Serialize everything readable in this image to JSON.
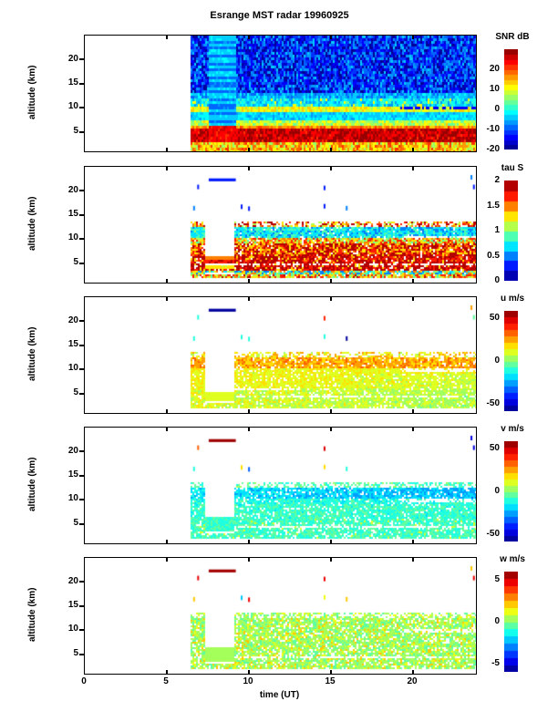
{
  "title": "Esrange MST radar 19960925",
  "axes": {
    "xlabel": "time (UT)",
    "ylabel": "altitude (km)",
    "x_ticks": [
      "0",
      "5",
      "10",
      "15",
      "20"
    ],
    "y_ticks": [
      "20",
      "15",
      "10",
      "5"
    ]
  },
  "chart_data": {
    "type": "heatmap",
    "title": "Esrange MST radar 19960925",
    "xlabel": "time (UT)",
    "ylabel": "altitude (km)",
    "x_range_ut": [
      0,
      23.83
    ],
    "alt_range_km": [
      1,
      25
    ],
    "x_tick_values": [
      0,
      5,
      10,
      15,
      20
    ],
    "y_tick_values": [
      20,
      15,
      10,
      5
    ],
    "colormap": "jet",
    "data_start_ut": 6.4,
    "calibration_gap_ut": [
      7.35,
      9.15
    ],
    "specks": [
      [
        6.85,
        21.3
      ],
      [
        6.6,
        16.9
      ],
      [
        9.5,
        17.2
      ],
      [
        9.95,
        16.8
      ],
      [
        14.55,
        21.1
      ],
      [
        14.55,
        17.3
      ],
      [
        15.9,
        16.9
      ],
      [
        23.5,
        23.3
      ],
      [
        23.65,
        21.3
      ],
      [
        23.85,
        16.9
      ]
    ],
    "panels": [
      {
        "name": "snr",
        "colorbar_label": "SNR dB",
        "cbar_ticks": [
          "20",
          "10",
          "0",
          "-10",
          "-20"
        ],
        "cbar_tick_vals": [
          20,
          10,
          0,
          -10,
          -20
        ],
        "range": [
          -20,
          30
        ],
        "steps": 20,
        "seed": 11,
        "drop": 0,
        "cellH": 3,
        "bands": [
          {
            "a0": 13.2,
            "a1": 25.0,
            "v": -12,
            "n": 8
          },
          {
            "a0": 12.2,
            "a1": 13.2,
            "v": -5,
            "n": 4
          },
          {
            "a0": 10.6,
            "a1": 12.2,
            "v": -2,
            "n": 5,
            "fleckP": 0.07,
            "fleckV": 12
          },
          {
            "a0": 9.4,
            "a1": 10.6,
            "v": 11,
            "n": 4
          },
          {
            "a0": 7.6,
            "a1": 9.4,
            "v": -3,
            "n": 3
          },
          {
            "a0": 6.6,
            "a1": 7.6,
            "v": 8,
            "n": 5
          },
          {
            "a0": 5.8,
            "a1": 6.6,
            "v": 17,
            "n": 4
          },
          {
            "a0": 3.0,
            "a1": 5.8,
            "v": 26,
            "n": 4,
            "fleckP": 0.1,
            "fleckV": 30
          },
          {
            "a0": 1.0,
            "a1": 3.0,
            "v": 14,
            "n": 8
          }
        ],
        "stripes": {
          "t0": 7.5,
          "t1": 9.2,
          "aSplit": 6.2,
          "v1": -3,
          "v2": -8,
          "belowV": 24
        },
        "hlines": [
          {
            "t0": 19.0,
            "t1": 23.83,
            "a0": 9.9,
            "a1": 10.4,
            "v": -13,
            "drop": 0.3
          }
        ]
      },
      {
        "name": "tau",
        "colorbar_label": "tau S",
        "cbar_ticks": [
          "2",
          "1.5",
          "1",
          "0.5",
          "0"
        ],
        "cbar_tick_vals": [
          2,
          1.5,
          1,
          0.5,
          0
        ],
        "range": [
          0,
          2
        ],
        "steps": 10,
        "seed": 22,
        "drop": 0.07,
        "cellH": 2,
        "bands": [
          {
            "a0": 12.6,
            "a1": 13.6,
            "v": 1.55,
            "n": 0.5,
            "drop": 0.45
          },
          {
            "a0": 10.4,
            "a1": 12.6,
            "v": 0.75,
            "n": 0.22,
            "trend": -0.008
          },
          {
            "a0": 9.3,
            "a1": 10.4,
            "v": 1.35,
            "n": 0.45
          },
          {
            "a0": 7.0,
            "a1": 9.3,
            "v": 1.75,
            "n": 0.4,
            "fleckP": 0.15,
            "fleckV": 1.3
          },
          {
            "a0": 5.4,
            "a1": 7.0,
            "v": 1.85,
            "n": 0.3,
            "fleckP": 0.1,
            "fleckV": 1.25
          },
          {
            "a0": 3.4,
            "a1": 5.4,
            "v": 1.9,
            "n": 0.25,
            "fleckP": 0.12,
            "fleckV": 1.3,
            "drop": 0.1
          },
          {
            "a0": 2.6,
            "a1": 3.4,
            "v": 1.0,
            "n": 0.6
          },
          {
            "a0": 2.1,
            "a1": 2.6,
            "v": 1.4,
            "n": 0.5
          }
        ],
        "gap": {
          "t0": 7.35,
          "t1": 9.15,
          "a0": 6.4,
          "a1": 13.6
        },
        "gapFill": [
          {
            "a0": 5.8,
            "a1": 6.4,
            "v": 1.5,
            "n": 0.1
          },
          {
            "a0": 5.0,
            "a1": 5.8,
            "v": 1.78,
            "n": 0.08
          },
          {
            "a0": 4.5,
            "a1": 5.0,
            "v": null
          },
          {
            "a0": 3.9,
            "a1": 4.5,
            "v": 1.25,
            "n": 0.08
          },
          {
            "a0": 2.75,
            "a1": 3.05,
            "v": null
          }
        ],
        "topbar": {
          "t0": 7.55,
          "t1": 9.2,
          "a0": 22.0,
          "a1": 22.6,
          "v": 0.25
        },
        "specks_v": [
          0.3,
          0.4,
          0.35,
          0.3,
          0.35,
          0.3,
          0.4,
          0.5,
          0.35,
          0.3
        ],
        "hlines": [
          {
            "t0": 19.3,
            "t1": 23.83,
            "a0": 10.3,
            "a1": 10.8,
            "v": null,
            "drop": 0.2
          },
          {
            "t0": 9.15,
            "t1": 23.83,
            "a0": 4.6,
            "a1": 4.9,
            "v": null,
            "drop": 0.45
          }
        ]
      },
      {
        "name": "u",
        "colorbar_label": "u m/s",
        "cbar_ticks": [
          "50",
          "0",
          "-50"
        ],
        "cbar_tick_vals": [
          50,
          0,
          -50
        ],
        "range": [
          -58,
          58
        ],
        "steps": 16,
        "seed": 33,
        "drop": 0.12,
        "cellH": 2,
        "bands": [
          {
            "a0": 12.6,
            "a1": 13.6,
            "v": 16,
            "n": 12,
            "drop": 0.5
          },
          {
            "a0": 10.2,
            "a1": 12.6,
            "v": 24,
            "n": 8
          },
          {
            "a0": 9.2,
            "a1": 10.2,
            "v": 13,
            "n": 6
          },
          {
            "a0": 6.0,
            "a1": 9.2,
            "v": 13,
            "n": 5,
            "trend": -0.3
          },
          {
            "a0": 4.6,
            "a1": 6.0,
            "v": 10,
            "n": 6,
            "trend": -0.35
          },
          {
            "a0": 2.1,
            "a1": 4.6,
            "v": 9,
            "n": 7,
            "trend": -0.3
          }
        ],
        "gap": {
          "t0": 7.35,
          "t1": 9.15,
          "a0": 5.5,
          "a1": 13.6
        },
        "gapFill": [
          {
            "a0": 3.5,
            "a1": 5.5,
            "v": 12,
            "n": 2
          },
          {
            "a0": 3.2,
            "a1": 3.5,
            "v": null
          }
        ],
        "topbar": {
          "t0": 7.55,
          "t1": 9.2,
          "a0": 22.0,
          "a1": 22.6,
          "v": -56
        },
        "specks_v": [
          -8,
          -10,
          -12,
          -14,
          38,
          -10,
          -52,
          25,
          -6,
          -50
        ],
        "hlines": [
          {
            "t0": 19.3,
            "t1": 23.83,
            "a0": 9.6,
            "a1": 10.1,
            "v": null,
            "drop": 0.25
          },
          {
            "t0": 9.15,
            "t1": 23.83,
            "a0": 4.2,
            "a1": 4.5,
            "v": null,
            "drop": 0.3
          },
          {
            "t0": 9.15,
            "t1": 13.0,
            "a0": 5.8,
            "a1": 6.2,
            "v": null,
            "drop": 0.2
          }
        ]
      },
      {
        "name": "v",
        "colorbar_label": "v m/s",
        "cbar_ticks": [
          "50",
          "0",
          "-50"
        ],
        "cbar_tick_vals": [
          50,
          0,
          -50
        ],
        "range": [
          -58,
          58
        ],
        "steps": 16,
        "seed": 44,
        "drop": 0.14,
        "cellH": 2,
        "bands": [
          {
            "a0": 12.6,
            "a1": 13.6,
            "v": -6,
            "n": 8,
            "drop": 0.5
          },
          {
            "a0": 10.2,
            "a1": 12.6,
            "v": -19,
            "n": 7,
            "trend": -0.3
          },
          {
            "a0": 9.2,
            "a1": 10.2,
            "v": -11,
            "n": 6
          },
          {
            "a0": 6.0,
            "a1": 9.2,
            "v": -8,
            "n": 5,
            "fleckP": 0.05,
            "fleckV": -20
          },
          {
            "a0": 2.1,
            "a1": 6.0,
            "v": -7,
            "n": 6,
            "fleckP": 0.05,
            "fleckV": 8
          }
        ],
        "gap": {
          "t0": 7.35,
          "t1": 9.15,
          "a0": 6.3,
          "a1": 13.6
        },
        "gapFill": [
          {
            "a0": 3.5,
            "a1": 6.3,
            "v": -8,
            "n": 2
          },
          {
            "a0": 3.2,
            "a1": 3.5,
            "v": null
          }
        ],
        "topbar": {
          "t0": 7.55,
          "t1": 9.2,
          "a0": 22.0,
          "a1": 22.6,
          "v": 56
        },
        "specks_v": [
          35,
          -14,
          20,
          -35,
          45,
          18,
          -8,
          -50,
          -50,
          -48
        ],
        "hlines": [
          {
            "t0": 19.3,
            "t1": 23.83,
            "a0": 9.6,
            "a1": 10.1,
            "v": null,
            "drop": 0.25
          },
          {
            "t0": 9.15,
            "t1": 23.83,
            "a0": 4.2,
            "a1": 4.5,
            "v": null,
            "drop": 0.3
          }
        ]
      },
      {
        "name": "w",
        "colorbar_label": "w m/s",
        "cbar_ticks": [
          "5",
          "0",
          "-5"
        ],
        "cbar_tick_vals": [
          5,
          0,
          -5
        ],
        "range": [
          -6,
          6
        ],
        "steps": 14,
        "seed": 55,
        "drop": 0.16,
        "cellH": 2,
        "bands": [
          {
            "a0": 12.6,
            "a1": 13.6,
            "v": 0.4,
            "n": 0.8,
            "drop": 0.45
          },
          {
            "a0": 2.1,
            "a1": 12.6,
            "v": 0.35,
            "n": 0.75,
            "fleckP": 0.1,
            "fleckV": 2.2
          }
        ],
        "gap": {
          "t0": 7.35,
          "t1": 9.15,
          "a0": 6.3,
          "a1": 13.6
        },
        "gapFill": [
          {
            "a0": 3.5,
            "a1": 6.3,
            "v": 0.35,
            "n": 0.3
          },
          {
            "a0": 3.2,
            "a1": 3.5,
            "v": null
          }
        ],
        "topbar": {
          "t0": 7.55,
          "t1": 9.2,
          "a0": 22.0,
          "a1": 22.6,
          "v": 5.7
        },
        "specks_v": [
          5,
          2.5,
          -2,
          4.5,
          5,
          1.5,
          2.2,
          2.0,
          5,
          5
        ],
        "hlines": [
          {
            "t0": 19.3,
            "t1": 23.83,
            "a0": 9.6,
            "a1": 10.1,
            "v": null,
            "drop": 0.25
          },
          {
            "t0": 9.15,
            "t1": 23.83,
            "a0": 4.2,
            "a1": 4.5,
            "v": null,
            "drop": 0.3
          }
        ]
      }
    ]
  }
}
